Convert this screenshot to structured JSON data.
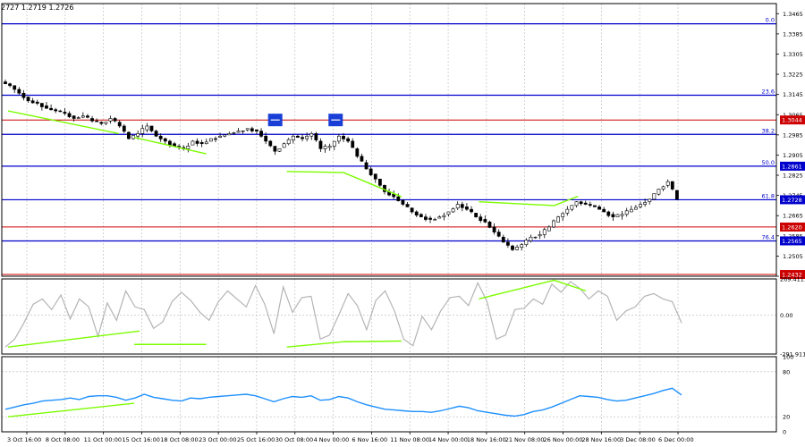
{
  "header": {
    "quote": "2727 1.2719 1.2726"
  },
  "colors": {
    "background": "#ffffff",
    "grid": "#b8b8b8",
    "frame": "#000000",
    "candle_up": "#000000",
    "candle_down": "#000000",
    "level_blue": "#0000cc",
    "level_red": "#cc0000",
    "trendline": "#7cfc00",
    "cci_line": "#b4b4b4",
    "rsi_line": "#1e90ff",
    "marker": "#1a3fd6"
  },
  "chart_data": [
    {
      "type": "candlestick",
      "pane": "price",
      "y_ticks": [
        "1.3465",
        "1.3385",
        "1.3305",
        "1.3225",
        "1.3145",
        "1.3065",
        "1.2985",
        "1.2905",
        "1.2825",
        "1.2745",
        "1.2665",
        "1.2585",
        "1.2505",
        "1.2425"
      ],
      "ylim": [
        1.2425,
        1.3505
      ],
      "x_ticks": [
        "3 Oct 16:00",
        "8 Oct 08:00",
        "11 Oct 00:00",
        "15 Oct 16:00",
        "18 Oct 08:00",
        "23 Oct 00:00",
        "25 Oct 16:00",
        "30 Oct 08:00",
        "4 Nov 00:00",
        "6 Nov 16:00",
        "11 Nov 08:00",
        "14 Nov 00:00",
        "18 Nov 16:00",
        "21 Nov 08:00",
        "26 Nov 00:00",
        "28 Nov 16:00",
        "3 Dec 08:00",
        "6 Dec 00:00"
      ],
      "close_path": [
        1.318,
        1.315,
        1.312,
        1.311,
        1.309,
        1.308,
        1.307,
        1.305,
        1.306,
        1.304,
        1.303,
        1.305,
        1.302,
        1.297,
        1.299,
        1.302,
        1.298,
        1.296,
        1.294,
        1.293,
        1.296,
        1.295,
        1.297,
        1.298,
        1.299,
        1.3,
        1.301,
        1.3,
        1.296,
        1.292,
        1.295,
        1.298,
        1.297,
        1.299,
        1.293,
        1.294,
        1.298,
        1.296,
        1.29,
        1.285,
        1.281,
        1.276,
        1.274,
        1.271,
        1.268,
        1.266,
        1.265,
        1.266,
        1.268,
        1.271,
        1.269,
        1.266,
        1.264,
        1.26,
        1.256,
        1.253,
        1.255,
        1.258,
        1.259,
        1.262,
        1.266,
        1.269,
        1.272,
        1.271,
        1.27,
        1.268,
        1.266,
        1.267,
        1.269,
        1.271,
        1.273,
        1.277,
        1.28,
        1.273
      ],
      "fib_levels": [
        {
          "label": "0.0",
          "value": 1.3425,
          "color": "blue"
        },
        {
          "label": "23.6",
          "value": 1.3142,
          "color": "blue"
        },
        {
          "label": "38.2",
          "value": 1.2987,
          "color": "blue"
        },
        {
          "label": "50.0",
          "value": 1.2861,
          "color": "blue"
        },
        {
          "label": "61.8",
          "value": 1.2728,
          "color": "blue"
        },
        {
          "label": "76.4",
          "value": 1.2565,
          "color": "blue"
        }
      ],
      "price_labels": [
        {
          "text": "1.3044",
          "value": 1.3044,
          "color": "red"
        },
        {
          "text": "1.2861",
          "value": 1.2861,
          "color": "blue"
        },
        {
          "text": "1.2728",
          "value": 1.2728,
          "color": "blue"
        },
        {
          "text": "1.2620",
          "value": 1.262,
          "color": "red"
        },
        {
          "text": "1.2565",
          "value": 1.2565,
          "color": "blue"
        },
        {
          "text": "1.2432",
          "value": 1.2432,
          "color": "red"
        }
      ],
      "red_levels": [
        1.3044,
        1.262,
        1.2432
      ],
      "trendlines": [
        {
          "x": [
            0.008,
            0.151
          ],
          "y": [
            1.308,
            1.299
          ]
        },
        {
          "x": [
            0.171,
            0.264
          ],
          "y": [
            1.2975,
            1.291
          ]
        },
        {
          "x": [
            0.368,
            0.441
          ],
          "y": [
            1.284,
            1.2836
          ]
        },
        {
          "x": [
            0.441,
            0.516
          ],
          "y": [
            1.2836,
            1.274
          ]
        },
        {
          "x": [
            0.616,
            0.713
          ],
          "y": [
            1.272,
            1.2705
          ]
        },
        {
          "x": [
            0.713,
            0.744
          ],
          "y": [
            1.2705,
            1.2742
          ]
        }
      ],
      "markers": [
        {
          "x": 0.353,
          "y": 1.3044
        },
        {
          "x": 0.431,
          "y": 1.3044
        }
      ]
    },
    {
      "type": "line",
      "pane": "cci",
      "y_ticks": [
        "269.4111",
        "0.00",
        "-291.9114"
      ],
      "ylim": [
        -291.9114,
        269.4111
      ],
      "values": [
        -240,
        -180,
        -60,
        80,
        120,
        40,
        150,
        -30,
        120,
        60,
        -160,
        90,
        -40,
        180,
        60,
        40,
        -100,
        -50,
        100,
        170,
        110,
        20,
        -40,
        100,
        180,
        120,
        60,
        220,
        80,
        -140,
        210,
        20,
        130,
        140,
        -180,
        -150,
        0,
        160,
        70,
        -110,
        110,
        180,
        30,
        -180,
        -230,
        -10,
        -110,
        30,
        130,
        140,
        70,
        240,
        100,
        -180,
        -150,
        40,
        50,
        120,
        80,
        230,
        170,
        250,
        200,
        120,
        180,
        140,
        -40,
        30,
        60,
        140,
        160,
        120,
        100,
        -60
      ],
      "trendlines": [
        {
          "x": [
            0.008,
            0.178
          ],
          "y": [
            -240,
            -120
          ]
        },
        {
          "x": [
            0.171,
            0.264
          ],
          "y": [
            -220,
            -220
          ]
        },
        {
          "x": [
            0.368,
            0.441
          ],
          "y": [
            -240,
            -200
          ]
        },
        {
          "x": [
            0.441,
            0.516
          ],
          "y": [
            -200,
            -195
          ]
        },
        {
          "x": [
            0.616,
            0.713
          ],
          "y": [
            120,
            260
          ]
        },
        {
          "x": [
            0.713,
            0.754
          ],
          "y": [
            260,
            180
          ]
        }
      ]
    },
    {
      "type": "line",
      "pane": "rsi",
      "y_ticks": [
        "100",
        "80",
        "20",
        "0"
      ],
      "ylim": [
        0,
        100
      ],
      "values": [
        30,
        33,
        36,
        38,
        41,
        42,
        43,
        45,
        43,
        47,
        48,
        48,
        46,
        42,
        45,
        50,
        46,
        44,
        42,
        41,
        45,
        44,
        46,
        47,
        48,
        49,
        50,
        48,
        44,
        40,
        44,
        47,
        46,
        48,
        42,
        43,
        47,
        45,
        40,
        36,
        33,
        30,
        29,
        28,
        27,
        27,
        26,
        28,
        31,
        34,
        32,
        28,
        26,
        24,
        22,
        21,
        23,
        27,
        29,
        33,
        38,
        43,
        48,
        47,
        46,
        43,
        41,
        42,
        45,
        48,
        51,
        55,
        58,
        49
      ],
      "trendlines": [
        {
          "x": [
            0.008,
            0.171
          ],
          "y": [
            20,
            38
          ]
        }
      ]
    }
  ]
}
